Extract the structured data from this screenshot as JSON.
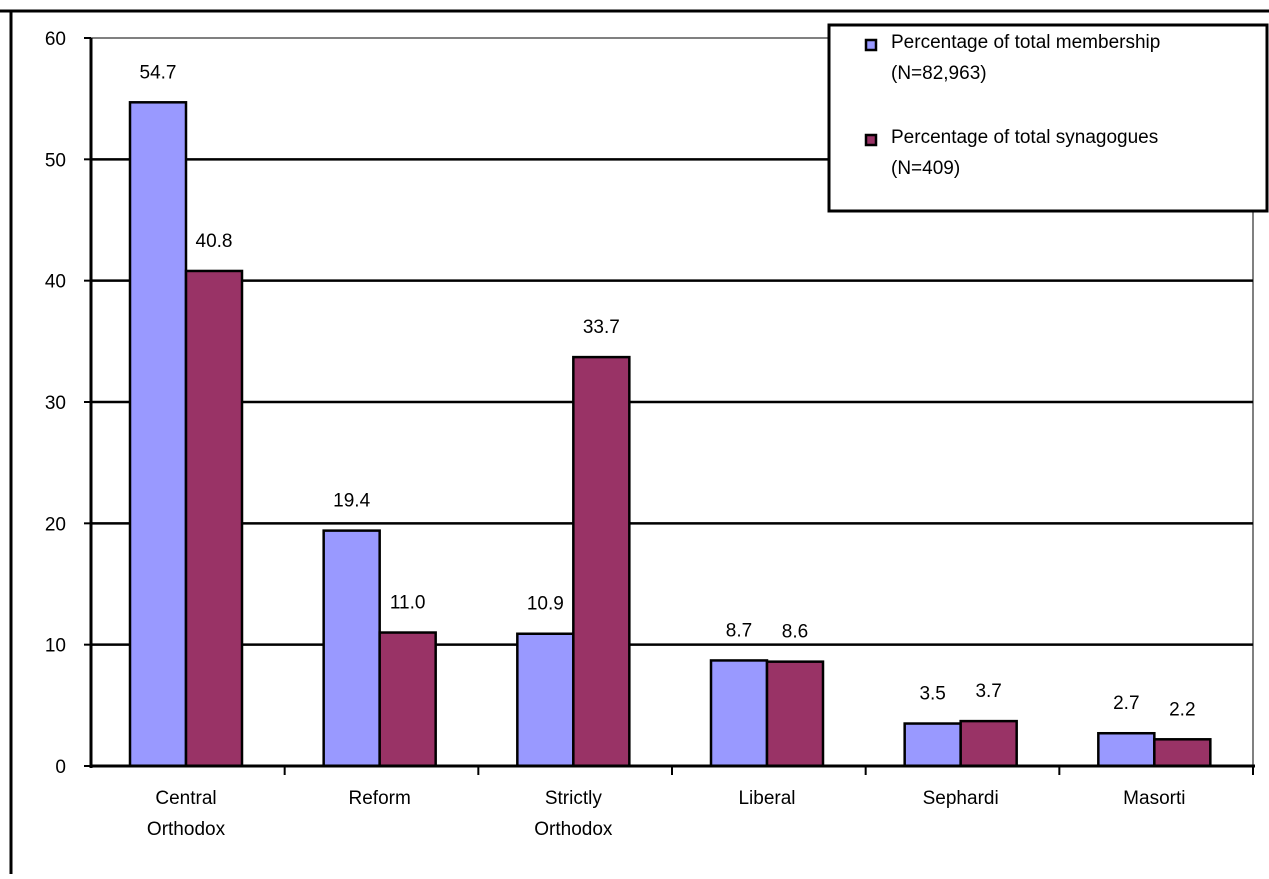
{
  "chart_data": {
    "type": "bar",
    "title": "",
    "xlabel": "",
    "ylabel": "",
    "ylim": [
      0,
      60
    ],
    "yticks": [
      0,
      10,
      20,
      30,
      40,
      50,
      60
    ],
    "grid": true,
    "legend_position": "top-right",
    "categories": [
      [
        "Central",
        "Orthodox"
      ],
      [
        "Reform"
      ],
      [
        "Strictly",
        "Orthodox"
      ],
      [
        "Liberal"
      ],
      [
        "Sephardi"
      ],
      [
        "Masorti"
      ]
    ],
    "series": [
      {
        "name": "Percentage of total membership (N=82,963)",
        "name_lines": [
          "Percentage of total membership",
          "(N=82,963)"
        ],
        "color": "#9999ff",
        "values": [
          54.7,
          19.4,
          10.9,
          8.7,
          3.5,
          2.7
        ],
        "labels": [
          "54.7",
          "19.4",
          "10.9",
          "8.7",
          "3.5",
          "2.7"
        ]
      },
      {
        "name": "Percentage of total synagogues (N=409)",
        "name_lines": [
          "Percentage of total synagogues",
          "(N=409)"
        ],
        "color": "#993366",
        "values": [
          40.8,
          11.0,
          33.7,
          8.6,
          3.7,
          2.2
        ],
        "labels": [
          "40.8",
          "11.0",
          "33.7",
          "8.6",
          "3.7",
          "2.2"
        ]
      }
    ]
  }
}
